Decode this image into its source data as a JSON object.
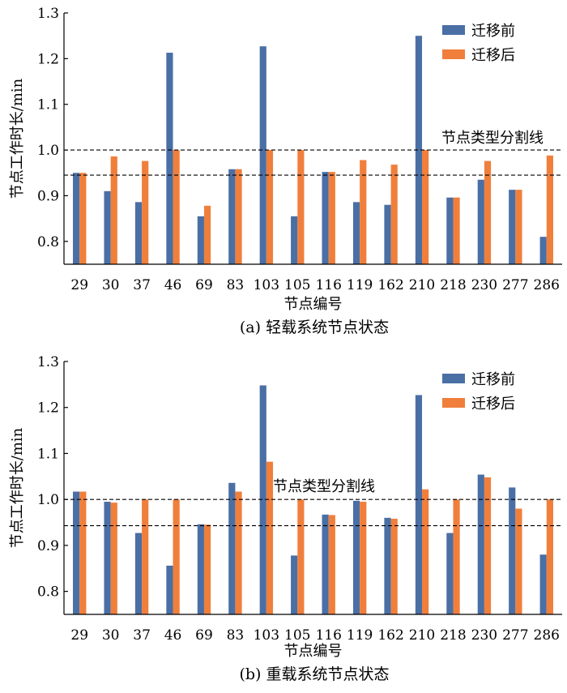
{
  "chart_data": [
    {
      "type": "bar",
      "caption": "(a)  轻载系统节点状态",
      "xlabel": "节点编号",
      "ylabel": "节点工作时长/min",
      "ylim": [
        0.75,
        1.3
      ],
      "yticks": [
        0.8,
        0.9,
        1.0,
        1.1,
        1.2,
        1.3
      ],
      "ytick_labels": [
        "0.8",
        "0.9",
        "1.0",
        "1.1",
        "1.2",
        "1.3"
      ],
      "grid": false,
      "legend_position": "top-right",
      "categories": [
        "29",
        "30",
        "37",
        "46",
        "69",
        "83",
        "103",
        "105",
        "116",
        "119",
        "162",
        "210",
        "218",
        "230",
        "277",
        "286"
      ],
      "series": [
        {
          "name": "迁移前",
          "color": "#4a6fa5",
          "values": [
            0.95,
            0.91,
            0.886,
            1.213,
            0.855,
            0.958,
            1.227,
            0.855,
            0.952,
            0.886,
            0.88,
            1.25,
            0.896,
            0.935,
            0.913,
            0.81
          ]
        },
        {
          "name": "迁移后",
          "color": "#f07f3c",
          "values": [
            0.95,
            0.986,
            0.976,
            1.0,
            0.878,
            0.958,
            1.0,
            1.0,
            0.952,
            0.978,
            0.968,
            1.0,
            0.896,
            0.976,
            0.913,
            0.988
          ]
        }
      ],
      "reference_lines": [
        {
          "y": 1.0,
          "style": "dashed",
          "label": "节点类型分割线"
        },
        {
          "y": 0.945,
          "style": "dashed",
          "label": ""
        }
      ]
    },
    {
      "type": "bar",
      "caption": "(b)  重载系统节点状态",
      "xlabel": "节点编号",
      "ylabel": "节点工作时长/min",
      "ylim": [
        0.75,
        1.3
      ],
      "yticks": [
        0.8,
        0.9,
        1.0,
        1.1,
        1.2,
        1.3
      ],
      "ytick_labels": [
        "0.8",
        "0.9",
        "1.0",
        "1.1",
        "1.2",
        "1.3"
      ],
      "grid": false,
      "legend_position": "top-right",
      "categories": [
        "29",
        "30",
        "37",
        "46",
        "69",
        "83",
        "103",
        "105",
        "116",
        "119",
        "162",
        "210",
        "218",
        "230",
        "277",
        "286"
      ],
      "series": [
        {
          "name": "迁移前",
          "color": "#4a6fa5",
          "values": [
            1.017,
            0.995,
            0.927,
            0.856,
            0.946,
            1.036,
            1.248,
            0.878,
            0.967,
            0.997,
            0.96,
            1.227,
            0.927,
            1.054,
            1.026,
            0.88
          ]
        },
        {
          "name": "迁移后",
          "color": "#f07f3c",
          "values": [
            1.017,
            0.993,
            1.0,
            1.0,
            0.945,
            1.017,
            1.082,
            1.0,
            0.966,
            0.995,
            0.958,
            1.022,
            1.0,
            1.048,
            0.98,
            1.0
          ]
        }
      ],
      "reference_lines": [
        {
          "y": 1.0,
          "style": "dashed",
          "label": "节点类型分割线"
        },
        {
          "y": 0.943,
          "style": "dashed",
          "label": ""
        }
      ]
    }
  ]
}
